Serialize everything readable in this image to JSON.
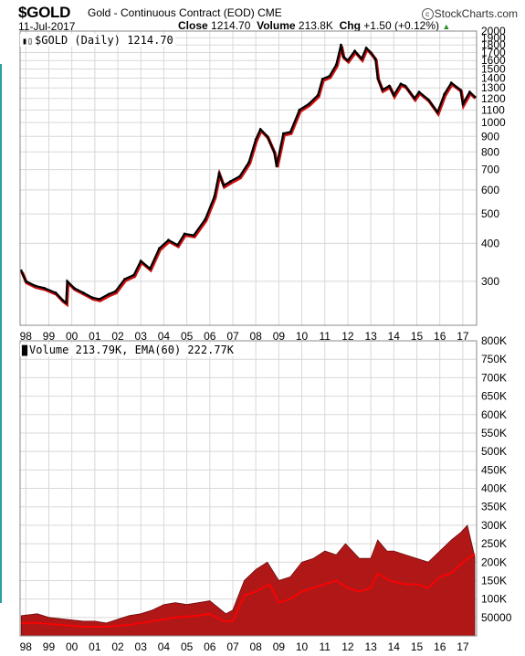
{
  "header": {
    "symbol": "$GOLD",
    "description": "Gold - Continuous Contract (EOD)",
    "exchange": "CME",
    "brand": "StockCharts.com",
    "date": "11-Jul-2017",
    "close_label": "Close",
    "close_value": "1214.70",
    "volume_label": "Volume",
    "volume_value": "213.8K",
    "chg_label": "Chg",
    "chg_value": "+1.50 (+0.12%)",
    "chg_color": "#2a8a2a"
  },
  "price_panel": {
    "label": "$GOLD (Daily) 1214.70"
  },
  "volume_panel": {
    "label": "Volume 213.79K, EMA(60) 222.77K"
  },
  "colors": {
    "price_line": "#000000",
    "price_down": "#cc1111",
    "volume_fill": "#b01818",
    "volume_edge": "#6b0a0a",
    "ema_line": "#ff0000",
    "grid": "#d8d8d8",
    "border": "#888888"
  },
  "chart_data": [
    {
      "type": "line",
      "title": "$GOLD (Daily) 1214.70",
      "y_scale": "log",
      "ylim": [
        215,
        2000
      ],
      "xlim": [
        1997.75,
        2017.6
      ],
      "x_ticks": [
        "98",
        "99",
        "00",
        "01",
        "02",
        "03",
        "04",
        "05",
        "06",
        "07",
        "08",
        "09",
        "10",
        "11",
        "12",
        "13",
        "14",
        "15",
        "16",
        "17"
      ],
      "y_ticks": [
        2000,
        1900,
        1800,
        1700,
        1600,
        1500,
        1400,
        1300,
        1200,
        1100,
        1000,
        900,
        800,
        700,
        600,
        500,
        400,
        300
      ],
      "series": [
        {
          "x": [
            1997.8,
            1998.0,
            1998.4,
            1998.8,
            1999.3,
            1999.6,
            1999.75,
            1999.8,
            2000.1,
            2000.5,
            2000.9,
            2001.2,
            2001.6,
            2001.9,
            2002.3,
            2002.7,
            2003.0,
            2003.4,
            2003.8,
            2004.2,
            2004.6,
            2004.9,
            2005.3,
            2005.8,
            2006.2,
            2006.4,
            2006.6,
            2006.9,
            2007.3,
            2007.7,
            2008.0,
            2008.2,
            2008.5,
            2008.8,
            2008.9,
            2009.2,
            2009.5,
            2009.9,
            2010.3,
            2010.7,
            2010.9,
            2011.2,
            2011.5,
            2011.7,
            2011.8,
            2012.0,
            2012.3,
            2012.6,
            2012.8,
            2013.0,
            2013.2,
            2013.3,
            2013.5,
            2013.8,
            2014.0,
            2014.3,
            2014.5,
            2014.9,
            2015.1,
            2015.5,
            2015.9,
            2016.2,
            2016.5,
            2016.9,
            2017.0,
            2017.3,
            2017.52
          ],
          "y": [
            325,
            300,
            290,
            285,
            275,
            260,
            255,
            300,
            285,
            275,
            265,
            262,
            272,
            278,
            305,
            315,
            350,
            330,
            385,
            410,
            395,
            430,
            425,
            480,
            570,
            680,
            620,
            640,
            665,
            740,
            880,
            950,
            900,
            800,
            720,
            920,
            930,
            1100,
            1150,
            1230,
            1390,
            1420,
            1550,
            1800,
            1650,
            1600,
            1720,
            1620,
            1760,
            1700,
            1620,
            1400,
            1280,
            1320,
            1230,
            1340,
            1320,
            1200,
            1260,
            1190,
            1080,
            1240,
            1350,
            1280,
            1150,
            1260,
            1214.7
          ]
        }
      ]
    },
    {
      "type": "area",
      "title": "Volume 213.79K, EMA(60) 222.77K",
      "ylim": [
        0,
        800000
      ],
      "xlim": [
        1997.75,
        2017.6
      ],
      "x_ticks": [
        "98",
        "99",
        "00",
        "01",
        "02",
        "03",
        "04",
        "05",
        "06",
        "07",
        "08",
        "09",
        "10",
        "11",
        "12",
        "13",
        "14",
        "15",
        "16",
        "17"
      ],
      "y_ticks": [
        "800K",
        "750K",
        "700K",
        "650K",
        "600K",
        "550K",
        "500K",
        "450K",
        "400K",
        "350K",
        "300K",
        "250K",
        "200K",
        "150K",
        "100K",
        "50000"
      ],
      "series": [
        {
          "name": "Volume",
          "x": [
            1997.8,
            1998.5,
            1999.0,
            1999.7,
            2000.5,
            2001.0,
            2001.5,
            2002.0,
            2002.5,
            2003.0,
            2003.5,
            2004.0,
            2004.5,
            2005.0,
            2005.5,
            2006.0,
            2006.3,
            2006.7,
            2007.0,
            2007.5,
            2008.0,
            2008.5,
            2009.0,
            2009.5,
            2010.0,
            2010.5,
            2011.0,
            2011.5,
            2011.9,
            2012.5,
            2013.0,
            2013.3,
            2013.7,
            2014.0,
            2014.5,
            2015.0,
            2015.5,
            2016.0,
            2016.5,
            2016.9,
            2017.2,
            2017.52
          ],
          "y": [
            55000,
            60000,
            50000,
            45000,
            40000,
            40000,
            35000,
            45000,
            55000,
            60000,
            70000,
            85000,
            90000,
            85000,
            90000,
            95000,
            80000,
            60000,
            70000,
            150000,
            180000,
            200000,
            150000,
            160000,
            200000,
            210000,
            230000,
            220000,
            250000,
            210000,
            210000,
            260000,
            230000,
            230000,
            220000,
            210000,
            200000,
            230000,
            260000,
            280000,
            300000,
            213790
          ]
        },
        {
          "name": "EMA(60)",
          "x": [
            1997.8,
            1998.5,
            1999.5,
            2000.5,
            2001.5,
            2002.5,
            2003.5,
            2004.5,
            2005.5,
            2006.0,
            2006.6,
            2007.0,
            2007.5,
            2008.0,
            2008.6,
            2009.0,
            2009.5,
            2010.0,
            2010.5,
            2011.0,
            2011.5,
            2012.0,
            2012.5,
            2013.0,
            2013.3,
            2013.8,
            2014.5,
            2015.0,
            2015.5,
            2016.0,
            2016.5,
            2017.0,
            2017.52
          ],
          "y": [
            35000,
            35000,
            30000,
            25000,
            25000,
            30000,
            40000,
            50000,
            55000,
            60000,
            40000,
            40000,
            110000,
            120000,
            140000,
            90000,
            100000,
            120000,
            130000,
            140000,
            150000,
            130000,
            120000,
            130000,
            170000,
            150000,
            140000,
            140000,
            130000,
            160000,
            170000,
            200000,
            222770
          ]
        }
      ]
    }
  ]
}
